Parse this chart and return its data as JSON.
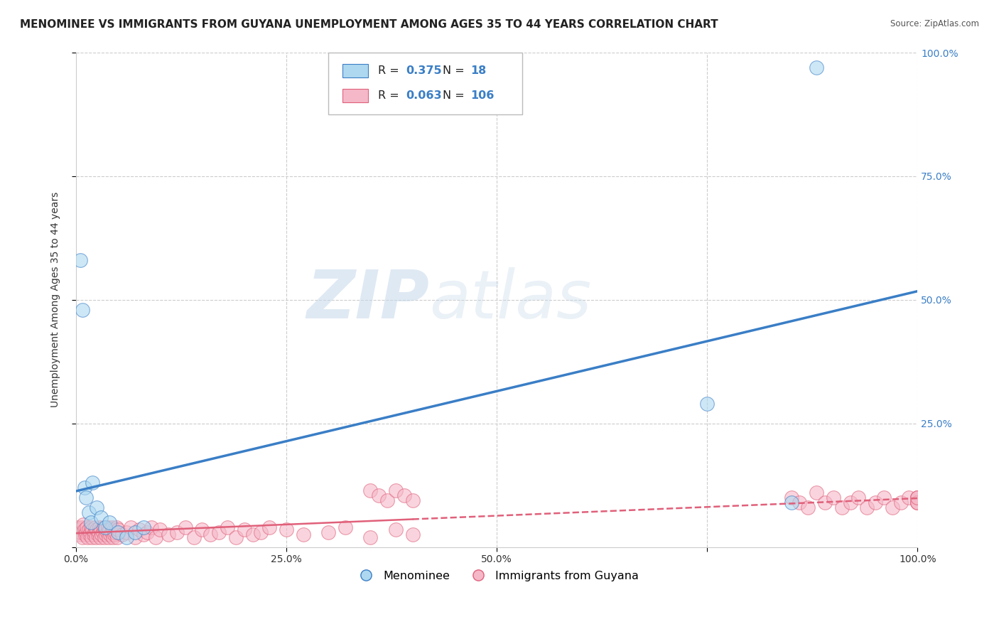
{
  "title": "MENOMINEE VS IMMIGRANTS FROM GUYANA UNEMPLOYMENT AMONG AGES 35 TO 44 YEARS CORRELATION CHART",
  "source": "Source: ZipAtlas.com",
  "ylabel": "Unemployment Among Ages 35 to 44 years",
  "blue_label": "Menominee",
  "pink_label": "Immigrants from Guyana",
  "blue_R": "0.375",
  "blue_N": "18",
  "pink_R": "0.063",
  "pink_N": "106",
  "blue_color": "#ADD8F0",
  "pink_color": "#F5B8C8",
  "blue_line_color": "#3A7EC6",
  "pink_line_color": "#E0607A",
  "background_color": "#FFFFFF",
  "grid_color": "#CCCCCC",
  "blue_scatter_x": [
    0.005,
    0.008,
    0.01,
    0.012,
    0.015,
    0.018,
    0.02,
    0.025,
    0.03,
    0.035,
    0.04,
    0.05,
    0.06,
    0.07,
    0.08,
    0.75,
    0.85,
    0.88
  ],
  "blue_scatter_y": [
    0.58,
    0.48,
    0.12,
    0.1,
    0.07,
    0.05,
    0.13,
    0.08,
    0.06,
    0.04,
    0.05,
    0.03,
    0.02,
    0.03,
    0.04,
    0.29,
    0.09,
    0.97
  ],
  "pink_scatter_x": [
    0.002,
    0.003,
    0.004,
    0.005,
    0.006,
    0.007,
    0.008,
    0.009,
    0.01,
    0.011,
    0.012,
    0.013,
    0.014,
    0.015,
    0.016,
    0.017,
    0.018,
    0.019,
    0.02,
    0.021,
    0.022,
    0.023,
    0.024,
    0.025,
    0.026,
    0.027,
    0.028,
    0.029,
    0.03,
    0.031,
    0.032,
    0.033,
    0.034,
    0.035,
    0.036,
    0.037,
    0.038,
    0.039,
    0.04,
    0.041,
    0.042,
    0.043,
    0.044,
    0.045,
    0.046,
    0.047,
    0.048,
    0.049,
    0.05,
    0.055,
    0.06,
    0.065,
    0.07,
    0.075,
    0.08,
    0.085,
    0.09,
    0.095,
    0.1,
    0.11,
    0.12,
    0.13,
    0.14,
    0.15,
    0.16,
    0.17,
    0.18,
    0.19,
    0.2,
    0.21,
    0.22,
    0.23,
    0.25,
    0.27,
    0.3,
    0.32,
    0.35,
    0.38,
    0.4,
    0.35,
    0.36,
    0.37,
    0.38,
    0.39,
    0.4,
    0.85,
    0.86,
    0.87,
    0.88,
    0.89,
    0.9,
    0.91,
    0.92,
    0.93,
    0.94,
    0.95,
    0.96,
    0.97,
    0.98,
    0.99,
    1.0,
    1.0,
    1.0,
    1.0,
    1.0,
    1.0
  ],
  "pink_scatter_y": [
    0.04,
    0.03,
    0.035,
    0.025,
    0.03,
    0.04,
    0.02,
    0.045,
    0.035,
    0.025,
    0.03,
    0.04,
    0.02,
    0.035,
    0.025,
    0.03,
    0.04,
    0.02,
    0.035,
    0.025,
    0.03,
    0.04,
    0.02,
    0.035,
    0.025,
    0.03,
    0.04,
    0.02,
    0.035,
    0.025,
    0.03,
    0.04,
    0.02,
    0.035,
    0.025,
    0.03,
    0.04,
    0.02,
    0.035,
    0.025,
    0.03,
    0.04,
    0.02,
    0.035,
    0.025,
    0.03,
    0.04,
    0.02,
    0.035,
    0.025,
    0.03,
    0.04,
    0.02,
    0.035,
    0.025,
    0.03,
    0.04,
    0.02,
    0.035,
    0.025,
    0.03,
    0.04,
    0.02,
    0.035,
    0.025,
    0.03,
    0.04,
    0.02,
    0.035,
    0.025,
    0.03,
    0.04,
    0.035,
    0.025,
    0.03,
    0.04,
    0.02,
    0.035,
    0.025,
    0.115,
    0.105,
    0.095,
    0.115,
    0.105,
    0.095,
    0.1,
    0.09,
    0.08,
    0.11,
    0.09,
    0.1,
    0.08,
    0.09,
    0.1,
    0.08,
    0.09,
    0.1,
    0.08,
    0.09,
    0.1,
    0.09,
    0.1,
    0.09,
    0.1,
    0.09,
    0.1
  ],
  "xlim": [
    0.0,
    1.0
  ],
  "ylim": [
    0.0,
    1.0
  ],
  "watermark_zip": "ZIP",
  "watermark_atlas": "atlas",
  "title_fontsize": 11,
  "axis_fontsize": 10,
  "tick_fontsize": 10,
  "right_tick_color": "#3A7EC6"
}
